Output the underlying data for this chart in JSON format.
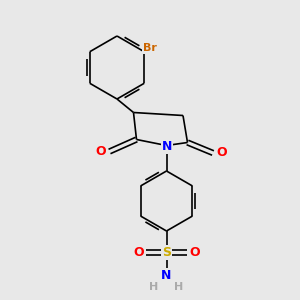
{
  "bg_color": "#e8e8e8",
  "atom_colors": {
    "C": "#000000",
    "N": "#0000ff",
    "O": "#ff0000",
    "S": "#ccaa00",
    "Br": "#cc6600",
    "H": "#aaaaaa"
  },
  "bond_lw": 1.2,
  "figsize": [
    3.0,
    3.0
  ],
  "dpi": 100
}
